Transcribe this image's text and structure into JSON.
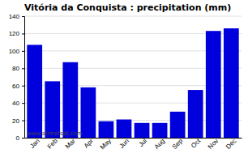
{
  "chart_data": {
    "type": "bar",
    "title": "Vitória da Conquista : precipitation (mm)",
    "categories": [
      "Jan",
      "Feb",
      "Mar",
      "Apr",
      "May",
      "Jun",
      "Jul",
      "Aug",
      "Sep",
      "Oct",
      "Nov",
      "Dec"
    ],
    "values": [
      107,
      65,
      87,
      58,
      19,
      21,
      17,
      17,
      30,
      55,
      123,
      126
    ],
    "color": "#0000dd",
    "ylim": [
      0,
      140
    ],
    "yticks": [
      0,
      20,
      40,
      60,
      80,
      100,
      120,
      140
    ],
    "grid": true,
    "annotations": [
      "www.allmetsat.com"
    ]
  }
}
